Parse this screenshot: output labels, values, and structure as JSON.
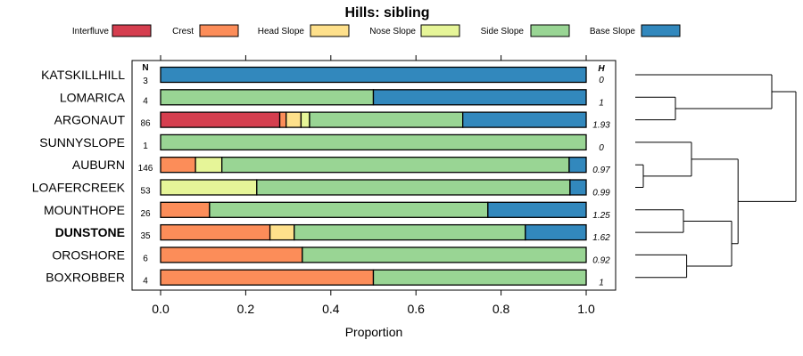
{
  "chart_data": {
    "type": "bar",
    "orientation": "horizontal",
    "stacked": true,
    "title": "Hills: sibling",
    "xlabel": "Proportion",
    "xlim": [
      0,
      1
    ],
    "xticks": [
      "0.0",
      "0.2",
      "0.4",
      "0.6",
      "0.8",
      "1.0"
    ],
    "xtick_values": [
      0,
      0.2,
      0.4,
      0.6,
      0.8,
      1.0
    ],
    "n_header": "N",
    "h_header": "H",
    "legend_position": "top",
    "categories": [
      "Interfluve",
      "Crest",
      "Head Slope",
      "Nose Slope",
      "Side Slope",
      "Base Slope"
    ],
    "colors": [
      "#D53E4F",
      "#FC8D59",
      "#FEE08B",
      "#E6F598",
      "#99D594",
      "#3288BD"
    ],
    "rows": [
      {
        "name": "KATSKILLHILL",
        "n": "3",
        "h": "0",
        "bold": false,
        "values": [
          0,
          0,
          0,
          0,
          0,
          1.0
        ]
      },
      {
        "name": "LOMARICA",
        "n": "4",
        "h": "1",
        "bold": false,
        "values": [
          0,
          0,
          0,
          0,
          0.5,
          0.5
        ]
      },
      {
        "name": "ARGONAUT",
        "n": "86",
        "h": "1.93",
        "bold": false,
        "values": [
          0.28,
          0.015,
          0.035,
          0.02,
          0.36,
          0.29
        ]
      },
      {
        "name": "SUNNYSLOPE",
        "n": "1",
        "h": "0",
        "bold": false,
        "values": [
          0,
          0,
          0,
          0,
          1.0,
          0
        ]
      },
      {
        "name": "AUBURN",
        "n": "146",
        "h": "0.97",
        "bold": false,
        "values": [
          0,
          0.082,
          0,
          0.062,
          0.816,
          0.04
        ]
      },
      {
        "name": "LOAFERCREEK",
        "n": "53",
        "h": "0.99",
        "bold": false,
        "values": [
          0,
          0,
          0,
          0.226,
          0.736,
          0.038
        ]
      },
      {
        "name": "MOUNTHOPE",
        "n": "26",
        "h": "1.25",
        "bold": false,
        "values": [
          0,
          0.115,
          0,
          0,
          0.654,
          0.231
        ]
      },
      {
        "name": "DUNSTONE",
        "n": "35",
        "h": "1.62",
        "bold": true,
        "values": [
          0,
          0.257,
          0.057,
          0,
          0.543,
          0.143
        ]
      },
      {
        "name": "OROSHORE",
        "n": "6",
        "h": "0.92",
        "bold": false,
        "values": [
          0,
          0.333,
          0,
          0,
          0.667,
          0
        ]
      },
      {
        "name": "BOXROBBER",
        "n": "4",
        "h": "1",
        "bold": false,
        "values": [
          0,
          0.5,
          0,
          0,
          0.5,
          0
        ]
      }
    ],
    "dendrogram": {
      "order": [
        "KATSKILLHILL",
        "LOMARICA",
        "ARGONAUT",
        "SUNNYSLOPE",
        "AUBURN",
        "LOAFERCREEK",
        "MOUNTHOPE",
        "DUNSTONE",
        "OROSHORE",
        "BOXROBBER"
      ],
      "merges": [
        {
          "a": 1,
          "b": 2,
          "height": 0.25
        },
        {
          "a": 4,
          "b": 5,
          "height": 0.05
        },
        {
          "a": -2,
          "b": 3,
          "height": 0.35
        },
        {
          "a": -1,
          "b": 0,
          "height": 0.85
        },
        {
          "a": 6,
          "b": 7,
          "height": 0.3
        },
        {
          "a": 8,
          "b": 9,
          "height": 0.32
        },
        {
          "a": -5,
          "b": -6,
          "height": 0.6
        },
        {
          "a": -3,
          "b": -7,
          "height": 0.64
        },
        {
          "a": -4,
          "b": -8,
          "height": 1.0
        }
      ]
    }
  }
}
